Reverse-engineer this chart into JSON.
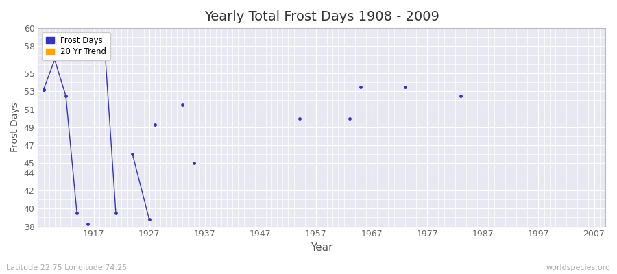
{
  "title": "Yearly Total Frost Days 1908 - 2009",
  "xlabel": "Year",
  "ylabel": "Frost Days",
  "subtitle": "Latitude 22.75 Longitude 74.25",
  "watermark": "worldspecies.org",
  "xlim": [
    1907,
    2009
  ],
  "ylim": [
    38,
    60
  ],
  "ytick_major": [
    38,
    40,
    42,
    44,
    45,
    47,
    49,
    51,
    53,
    55,
    58,
    60
  ],
  "xticks": [
    1907,
    1917,
    1927,
    1937,
    1947,
    1957,
    1967,
    1977,
    1987,
    1997,
    2007
  ],
  "xtick_labels": [
    "",
    "1917",
    "1927",
    "1937",
    "1947",
    "1957",
    "1967",
    "1977",
    "1987",
    "1997",
    "2007"
  ],
  "background_color": "#ffffff",
  "plot_bg_color": "#e8e8f2",
  "grid_color": "#ffffff",
  "frost_color": "#3333bb",
  "trend_color": "#ffa500",
  "scatter_points": [
    [
      1908,
      53.2
    ],
    [
      1916,
      38.3
    ],
    [
      1928,
      49.3
    ],
    [
      1933,
      51.5
    ],
    [
      1935,
      45.0
    ],
    [
      1954,
      50.0
    ],
    [
      1963,
      50.0
    ],
    [
      1965,
      53.5
    ],
    [
      1973,
      53.5
    ],
    [
      1983,
      52.5
    ]
  ],
  "line_segments": [
    [
      [
        1908,
        53.2
      ],
      [
        1910,
        56.5
      ],
      [
        1912,
        52.5
      ],
      [
        1914,
        39.5
      ]
    ],
    [
      [
        1919,
        57.8
      ],
      [
        1921,
        39.5
      ]
    ],
    [
      [
        1924,
        46.0
      ],
      [
        1927,
        38.8
      ]
    ]
  ]
}
